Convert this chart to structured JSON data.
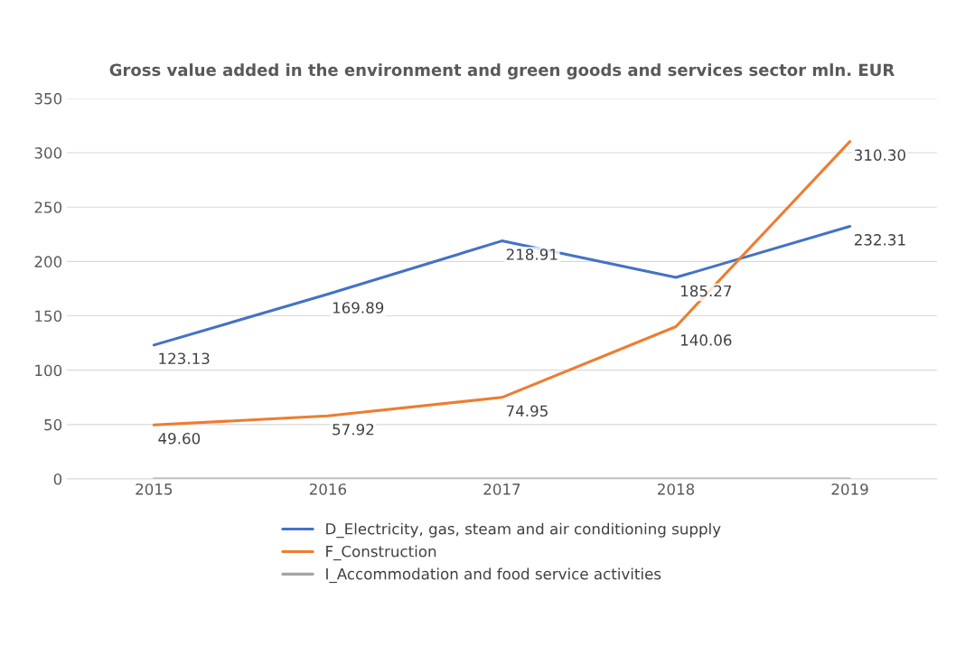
{
  "chart_data": {
    "type": "line",
    "title": "Gross value added in the environment and green goods and services sector mln. EUR",
    "categories": [
      "2015",
      "2016",
      "2017",
      "2018",
      "2019"
    ],
    "series": [
      {
        "name": "D_Electricity, gas, steam and air conditioning supply",
        "color": "#4472c4",
        "values": [
          123.13,
          169.89,
          218.91,
          185.27,
          232.31
        ],
        "value_labels": [
          "123.13",
          "169.89",
          "218.91",
          "185.27",
          "232.31"
        ]
      },
      {
        "name": "F_Construction",
        "color": "#ed7d31",
        "values": [
          49.6,
          57.92,
          74.95,
          140.06,
          310.3
        ],
        "value_labels": [
          "49.60",
          "57.92",
          "74.95",
          "140.06",
          "310.30"
        ]
      },
      {
        "name": "I_Accommodation and food service activities",
        "color": "#a5a5a5",
        "values": [
          0,
          0,
          0,
          0,
          0
        ]
      }
    ],
    "ylim": [
      0,
      350
    ],
    "yticks": [
      0,
      50,
      100,
      150,
      200,
      250,
      300,
      350
    ],
    "grid": "y",
    "legend": "bottom",
    "marker": "none",
    "line_style": "solid"
  }
}
